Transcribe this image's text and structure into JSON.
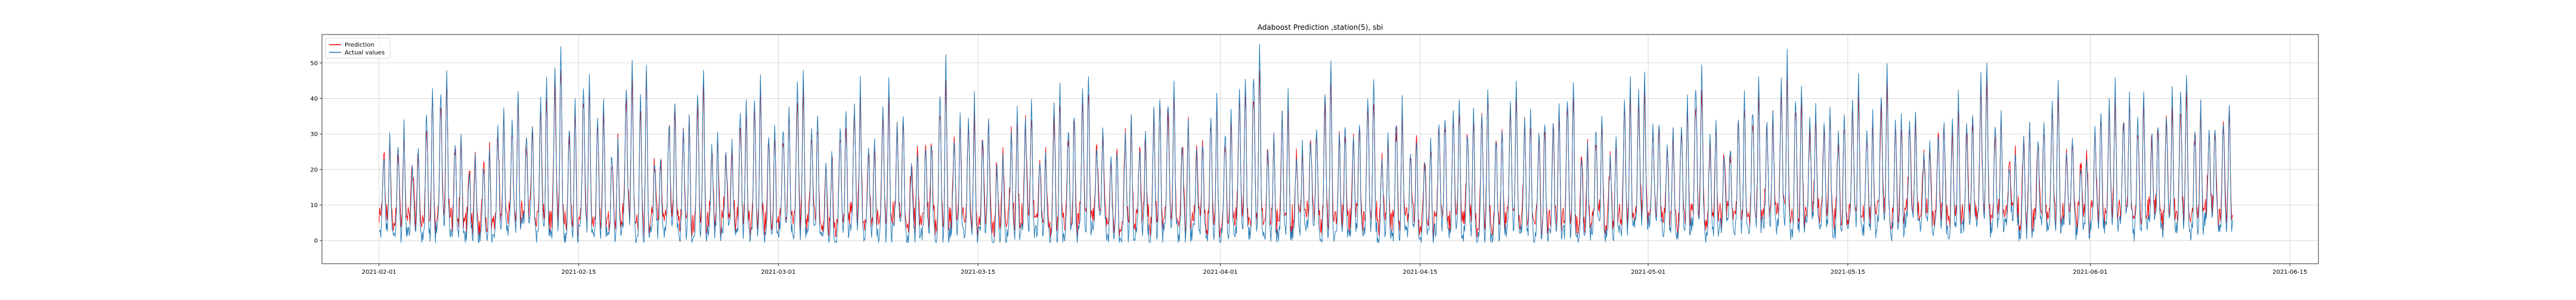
{
  "chart_data": {
    "type": "line",
    "title": "Adaboost Prediction ,station(5), sbi",
    "xlabel": "",
    "ylabel": "",
    "x_range": [
      "2021-01-28",
      "2021-06-17"
    ],
    "x_start": "2021-02-01",
    "x_end": "2021-06-11",
    "ylim": [
      -6.5,
      58
    ],
    "x_ticks": [
      "2021-02-01",
      "2021-02-15",
      "2021-03-01",
      "2021-03-15",
      "2021-04-01",
      "2021-04-15",
      "2021-05-01",
      "2021-05-15",
      "2021-06-01",
      "2021-06-15"
    ],
    "y_ticks": [
      0,
      10,
      20,
      30,
      40,
      50
    ],
    "grid": true,
    "legend_position": "top-left",
    "series": [
      {
        "name": "Prediction",
        "color": "#ff0000",
        "description": "hourly predicted values, oscillating daily between about 5 and 45"
      },
      {
        "name": "Actual values",
        "color": "#1f77b4",
        "description": "hourly actual values, oscillating daily between about 0 and 56"
      }
    ],
    "daily_peaks": [
      28,
      32,
      25,
      44,
      47,
      30,
      22,
      26,
      36,
      41,
      33,
      45,
      54,
      38,
      48,
      40,
      30,
      51,
      47,
      25,
      40,
      36,
      49,
      29,
      27,
      42,
      45,
      33,
      36,
      50,
      36,
      23,
      38,
      44,
      29,
      45,
      36,
      24,
      29,
      50,
      34,
      40,
      33,
      25,
      36,
      39,
      25,
      43,
      37,
      48,
      31,
      25,
      34,
      29,
      42,
      45,
      32,
      28,
      40,
      37,
      47,
      55,
      30,
      43,
      28,
      33,
      51,
      34,
      35,
      45,
      29,
      39,
      29,
      27,
      36,
      42,
      36,
      44,
      33,
      47,
      38,
      35,
      38,
      45,
      26,
      36,
      28,
      44,
      48,
      35,
      30,
      40,
      50,
      33,
      27,
      40,
      44,
      37,
      52,
      45,
      37,
      38,
      36,
      46,
      35,
      48,
      38,
      36,
      28,
      34,
      40,
      36,
      52,
      36,
      25,
      35,
      33,
      45,
      30,
      25,
      36,
      44,
      40,
      42,
      34,
      42,
      48,
      38,
      33,
      40,
      30,
      35,
      52,
      42
    ],
    "daily_lows": [
      2,
      1,
      3,
      0,
      4,
      2,
      1,
      0,
      3,
      2,
      5,
      1,
      2,
      0,
      3,
      2,
      1,
      4,
      0,
      2,
      3,
      1,
      0,
      2,
      4,
      1,
      2,
      0,
      3,
      1,
      2,
      0,
      1,
      3,
      2,
      0,
      4,
      1,
      2,
      0,
      3,
      1,
      2,
      0,
      1,
      3,
      2,
      0,
      1,
      2,
      4,
      0,
      1,
      2,
      0,
      3,
      1,
      2,
      0,
      1,
      3,
      2,
      0,
      1,
      2,
      4,
      0,
      1,
      2,
      3,
      0,
      1,
      2,
      0,
      3,
      1,
      2,
      0,
      1,
      3,
      2,
      0,
      1,
      2,
      0,
      3,
      1,
      2,
      4,
      6,
      3,
      2,
      5,
      1,
      4,
      2,
      3,
      5,
      4,
      2,
      6,
      3,
      2,
      4,
      3,
      5,
      2,
      6,
      4,
      3,
      2,
      4,
      5,
      3,
      6,
      2,
      4,
      3,
      5,
      2,
      4,
      3,
      6,
      2,
      5,
      3,
      4,
      2,
      6,
      3,
      5,
      2,
      4,
      3
    ]
  }
}
